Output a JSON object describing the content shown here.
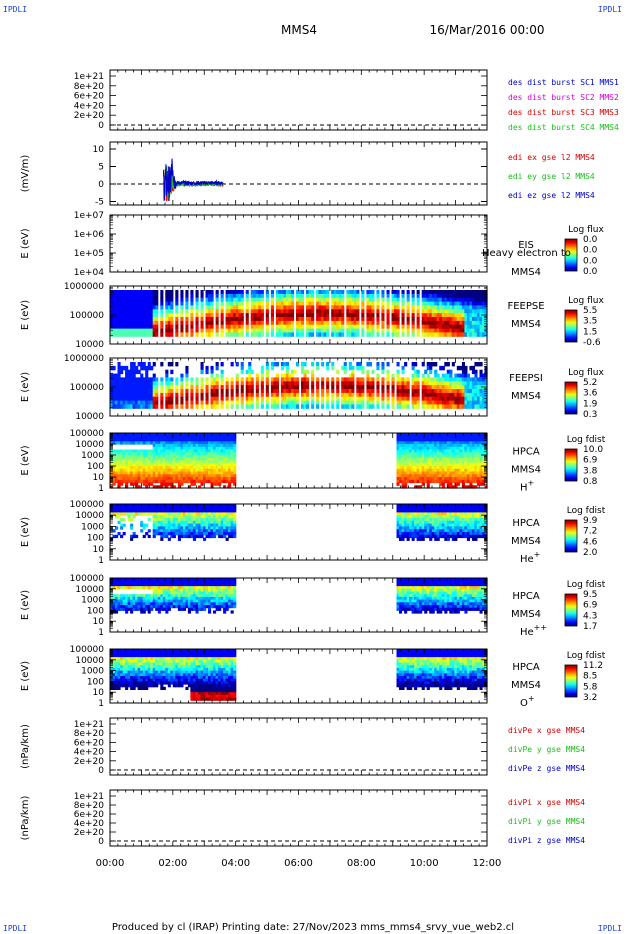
{
  "corner_label": "IPDLI",
  "header": {
    "spacecraft": "MMS4",
    "date": "16/Mar/2016 00:00"
  },
  "footer": "Produced by cl (IRAP)   Printing date: 27/Nov/2023   mms_mms4_srvy_vue_web2.cl",
  "time_axis": {
    "labels": [
      "00:00",
      "02:00",
      "04:00",
      "06:00",
      "08:00",
      "10:00",
      "12:00"
    ],
    "hours": [
      0,
      2,
      4,
      6,
      8,
      10,
      12
    ]
  },
  "colors": {
    "red": "#d40000",
    "green": "#18c018",
    "blue": "#0000c8",
    "magenta": "#d400d4"
  },
  "chart_data": [
    {
      "type": "line",
      "title": "des dist burst",
      "yticks": [
        "1e+21",
        "8e+20",
        "6e+20",
        "4e+20",
        "2e+20",
        "0"
      ],
      "series": [
        {
          "name": "des dist burst SC1 MMS1",
          "color": "#0000c8"
        },
        {
          "name": "des dist burst SC2 MMS2",
          "color": "#d400d4"
        },
        {
          "name": "des dist burst SC3 MMS3",
          "color": "#d40000"
        },
        {
          "name": "des dist burst SC4 MMS4",
          "color": "#18c018"
        }
      ]
    },
    {
      "type": "line",
      "ylabel": "(mV/m)",
      "yticks": [
        "10",
        "5",
        "0",
        "-5"
      ],
      "ylim": [
        -6,
        12
      ],
      "data_hours": [
        1.7,
        3.6
      ],
      "series": [
        {
          "name": "edi ex gse l2 MMS4",
          "color": "#d40000"
        },
        {
          "name": "edi ey gse l2 MMS4",
          "color": "#18c018"
        },
        {
          "name": "edi ez gse l2 MMS4",
          "color": "#0000c8"
        }
      ]
    },
    {
      "type": "heatmap",
      "ylabel": "E (eV)",
      "yticks": [
        "1e+07",
        "1e+06",
        "1e+05",
        "1e+04"
      ],
      "instrument": "EIS",
      "spacecraft": "MMS4",
      "overlay": "Heavy electron to",
      "colorbar_title": "Log flux",
      "colorbar_ticks": [
        "0.0",
        "0.0",
        "0.0",
        "0.0"
      ]
    },
    {
      "type": "heatmap",
      "ylabel": "E (eV)",
      "yticks": [
        "1000000",
        "100000",
        "10000"
      ],
      "instrument": "FEEPSE",
      "spacecraft": "MMS4",
      "colorbar_title": "Log flux",
      "colorbar_ticks": [
        "5.5",
        "3.5",
        "1.5",
        "-0.6"
      ]
    },
    {
      "type": "heatmap",
      "ylabel": "E (eV)",
      "yticks": [
        "1000000",
        "100000",
        "10000"
      ],
      "instrument": "FEEPSI",
      "spacecraft": "MMS4",
      "colorbar_title": "Log flux",
      "colorbar_ticks": [
        "5.2",
        "3.6",
        "1.9",
        "0.3"
      ]
    },
    {
      "type": "heatmap",
      "ylabel": "E (eV)",
      "yticks": [
        "100000",
        "10000",
        "1000",
        "100",
        "10",
        "1"
      ],
      "instrument": "HPCA",
      "spacecraft": "MMS4",
      "species": "H+",
      "colorbar_title": "Log fdist",
      "colorbar_ticks": [
        "10.0",
        "6.9",
        "3.8",
        "0.8"
      ],
      "data_hours": [
        [
          0,
          3.95
        ],
        [
          9.05,
          12
        ]
      ]
    },
    {
      "type": "heatmap",
      "ylabel": "E (eV)",
      "yticks": [
        "100000",
        "10000",
        "1000",
        "100",
        "10",
        "1"
      ],
      "instrument": "HPCA",
      "spacecraft": "MMS4",
      "species": "He+",
      "colorbar_title": "Log fdist",
      "colorbar_ticks": [
        "9.9",
        "7.2",
        "4.6",
        "2.0"
      ],
      "data_hours": [
        [
          0,
          3.95
        ],
        [
          9.05,
          12
        ]
      ]
    },
    {
      "type": "heatmap",
      "ylabel": "E (eV)",
      "yticks": [
        "100000",
        "10000",
        "1000",
        "100",
        "10",
        "1"
      ],
      "instrument": "HPCA",
      "spacecraft": "MMS4",
      "species": "He++",
      "colorbar_title": "Log fdist",
      "colorbar_ticks": [
        "9.5",
        "6.9",
        "4.3",
        "1.7"
      ],
      "data_hours": [
        [
          0,
          3.95
        ],
        [
          9.05,
          12
        ]
      ]
    },
    {
      "type": "heatmap",
      "ylabel": "E (eV)",
      "yticks": [
        "100000",
        "10000",
        "1000",
        "100",
        "10",
        "1"
      ],
      "instrument": "HPCA",
      "spacecraft": "MMS4",
      "species": "O+",
      "colorbar_title": "Log fdist",
      "colorbar_ticks": [
        "11.2",
        "8.5",
        "5.8",
        "3.2"
      ],
      "data_hours": [
        [
          0,
          3.95
        ],
        [
          9.05,
          12
        ]
      ]
    },
    {
      "type": "line",
      "ylabel": "(nPa/km)",
      "yticks": [
        "1e+21",
        "8e+20",
        "6e+20",
        "4e+20",
        "2e+20",
        "0"
      ],
      "series": [
        {
          "name": "divPe x gse MMS4",
          "color": "#d40000"
        },
        {
          "name": "divPe y gse MMS4",
          "color": "#18c018"
        },
        {
          "name": "divPe z gse MMS4",
          "color": "#0000c8"
        }
      ]
    },
    {
      "type": "line",
      "ylabel": "(nPa/km)",
      "yticks": [
        "1e+21",
        "8e+20",
        "6e+20",
        "4e+20",
        "2e+20",
        "0"
      ],
      "series": [
        {
          "name": "divPi x gse MMS4",
          "color": "#d40000"
        },
        {
          "name": "divPi y gse MMS4",
          "color": "#18c018"
        },
        {
          "name": "divPi z gse MMS4",
          "color": "#0000c8"
        }
      ]
    }
  ]
}
